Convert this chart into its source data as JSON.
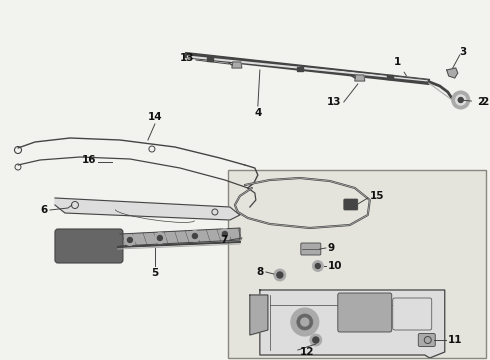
{
  "bg_color": "#f2f2ee",
  "line_color": "#444444",
  "text_color": "#111111",
  "box_bg": "#e4e4dc",
  "box_border": "#888880",
  "part_gray": "#aaaaaa",
  "part_dark": "#666666",
  "part_light": "#dddddd"
}
